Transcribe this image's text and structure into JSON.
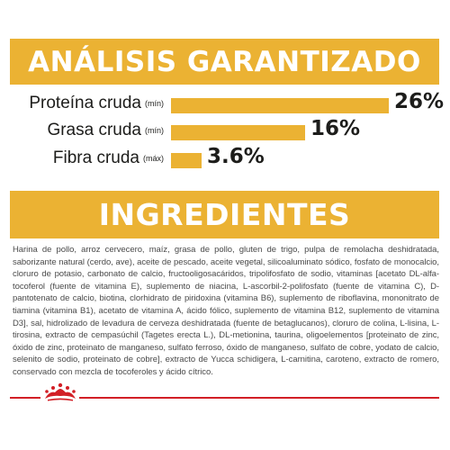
{
  "analysis": {
    "title": "ANÁLISIS GARANTIZADO",
    "rows": [
      {
        "label": "Proteína cruda",
        "unit": "(mín)",
        "value": "26%",
        "level": 26
      },
      {
        "label": "Grasa cruda",
        "unit": "(mín)",
        "value": "16%",
        "level": 16
      },
      {
        "label": "Fibra cruda",
        "unit": "(máx)",
        "value": "3.6%",
        "level": 3.6
      }
    ]
  },
  "ingredients": {
    "title": "INGREDIENTES",
    "text": "Harina de pollo, arroz cervecero, maíz, grasa de pollo, gluten de trigo, pulpa de remolacha deshidratada, saborizante natural (cerdo, ave), aceite de pescado, aceite vegetal, silicoaluminato sódico, fosfato de monocalcio, cloruro de potasio, carbonato de calcio, fructooligosacáridos, tripolifosfato de sodio, vitaminas [acetato DL-alfa-tocoferol (fuente de vitamina E), suplemento de niacina, L-ascorbil-2-polifosfato (fuente de vitamina C), D-pantotenato de calcio, biotina, clorhidrato de piridoxina (vitamina B6), suplemento de riboflavina, mononitrato de tiamina (vitamina B1), acetato de vitamina A, ácido fólico, suplemento de vitamina B12, suplemento de vitamina D3], sal, hidrolizado de levadura de cerveza deshidratada (fuente de betaglucanos), cloruro de colina, L-lisina, L-tirosina, extracto de cempasúchil (Tagetes erecta L.), DL-metionina, taurina, oligoelementos [proteinato de zinc, óxido de zinc, proteinato de manganeso, sulfato ferroso, óxido de manganeso, sulfato de cobre, yodato de calcio, selenito de sodio, proteinato de cobre], extracto de Yucca schidigera, L-carnitina, caroteno, extracto de romero, conservado con mezcla de tocoferoles y ácido cítrico."
  },
  "colors": {
    "accent": "#ebb233",
    "brand_red": "#d21f26",
    "text": "#1d1d1b"
  },
  "footer": {
    "logo_icon": "royal-canin-crown-icon"
  }
}
